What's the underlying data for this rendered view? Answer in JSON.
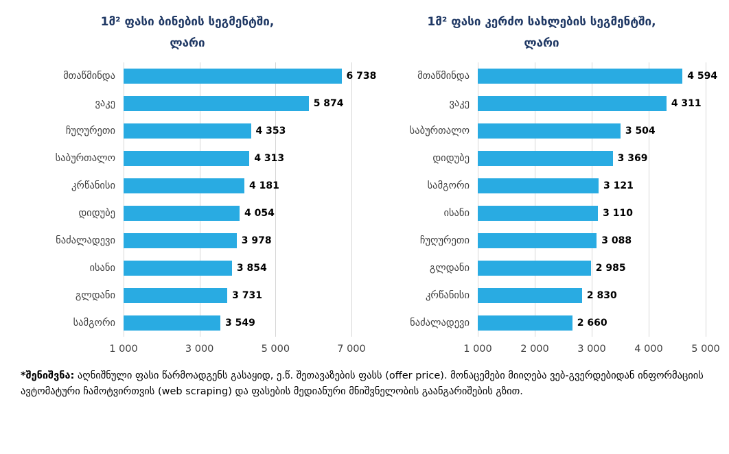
{
  "chart_data": [
    {
      "type": "bar",
      "orientation": "horizontal",
      "title": "1მ² ფასი ბინების სეგმენტში,",
      "subtitle": "ლარი",
      "categories": [
        "მთაწმინდა",
        "ვაკე",
        "ჩუღურეთი",
        "საბურთალო",
        "კრწანისი",
        "დიდუბე",
        "ნაძალადევი",
        "ისანი",
        "გლდანი",
        "სამგორი"
      ],
      "values": [
        6738,
        5874,
        4353,
        4313,
        4181,
        4054,
        3978,
        3854,
        3731,
        3549
      ],
      "value_labels": [
        "6 738",
        "5 874",
        "4 353",
        "4 313",
        "4 181",
        "4 054",
        "3 978",
        "3 854",
        "3 731",
        "3 549"
      ],
      "xlim": [
        1000,
        7000
      ],
      "ticks": [
        1000,
        3000,
        5000,
        7000
      ],
      "tick_labels": [
        "1 000",
        "3 000",
        "5 000",
        "7 000"
      ],
      "bar_color": "#29abe2",
      "grid": true,
      "legend": "none"
    },
    {
      "type": "bar",
      "orientation": "horizontal",
      "title": "1მ² ფასი კერძო სახლების სეგმენტში,",
      "subtitle": "ლარი",
      "categories": [
        "მთაწმინდა",
        "ვაკე",
        "საბურთალო",
        "დიდუბე",
        "სამგორი",
        "ისანი",
        "ჩუღურეთი",
        "გლდანი",
        "კრწანისი",
        "ნაძალადევი"
      ],
      "values": [
        4594,
        4311,
        3504,
        3369,
        3121,
        3110,
        3088,
        2985,
        2830,
        2660
      ],
      "value_labels": [
        "4 594",
        "4 311",
        "3 504",
        "3 369",
        "3 121",
        "3 110",
        "3 088",
        "2 985",
        "2 830",
        "2 660"
      ],
      "xlim": [
        1000,
        5000
      ],
      "ticks": [
        1000,
        2000,
        3000,
        4000,
        5000
      ],
      "tick_labels": [
        "1 000",
        "2 000",
        "3 000",
        "4 000",
        "5 000"
      ],
      "bar_color": "#29abe2",
      "grid": true,
      "legend": "none"
    }
  ],
  "footnote": {
    "label": "*შენიშვნა:",
    "text": " აღნიშნული ფასი წარმოადგენს გასაყიდ, ე.წ. შეთავაზების ფასს (offer price). მონაცემები მიიღება ვებ-გვერდებიდან ინფორმაციის ავტომატური ჩამოტვირთვის (web scraping) და ფასების მედიანური მნიშვნელობის გაანგარიშების გზით."
  },
  "colors": {
    "bar": "#29abe2",
    "title": "#1f3864",
    "gridline": "#d6d6d6",
    "axis_text": "#404040"
  }
}
